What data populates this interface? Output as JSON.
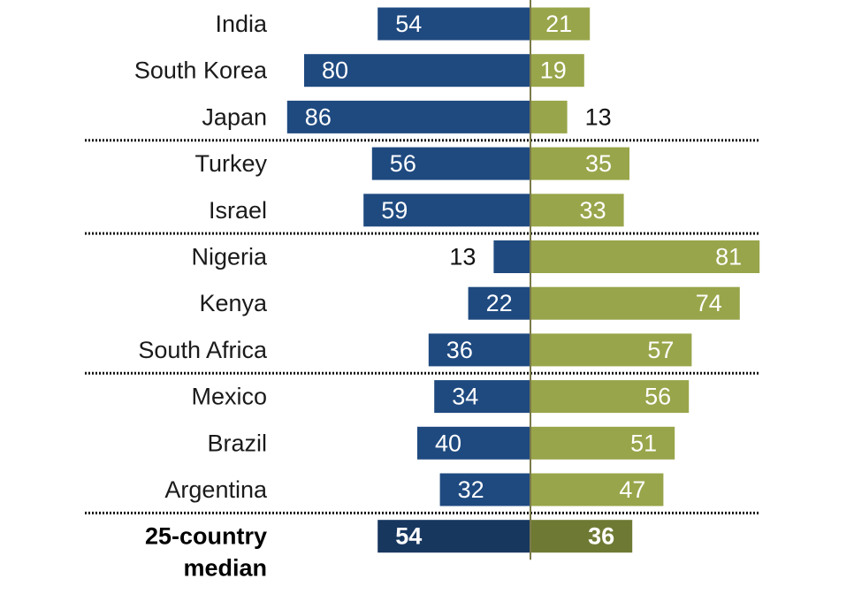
{
  "chart_data": {
    "type": "bar",
    "orientation": "horizontal-diverging",
    "colors": {
      "left": "#1f4a80",
      "right": "#99a54a",
      "left_median": "#17375f",
      "right_median": "#6e7a33",
      "axis": "#7a7a4a",
      "label_inside": "#ffffff",
      "label_outside": "#111111"
    },
    "categories": [
      "India",
      "South Korea",
      "Japan",
      "Turkey",
      "Israel",
      "Nigeria",
      "Kenya",
      "South Africa",
      "Mexico",
      "Brazil",
      "Argentina"
    ],
    "series": [
      {
        "name": "left",
        "values": [
          54,
          80,
          86,
          56,
          59,
          13,
          22,
          36,
          34,
          40,
          32
        ]
      },
      {
        "name": "right",
        "values": [
          21,
          19,
          13,
          35,
          33,
          81,
          74,
          57,
          56,
          51,
          47
        ]
      }
    ],
    "group_breaks_after": [
      "Japan",
      "Israel",
      "South Africa",
      "Argentina"
    ],
    "median": {
      "label_line1": "25-country",
      "label_line2": "median",
      "left": 54,
      "right": 36
    }
  }
}
